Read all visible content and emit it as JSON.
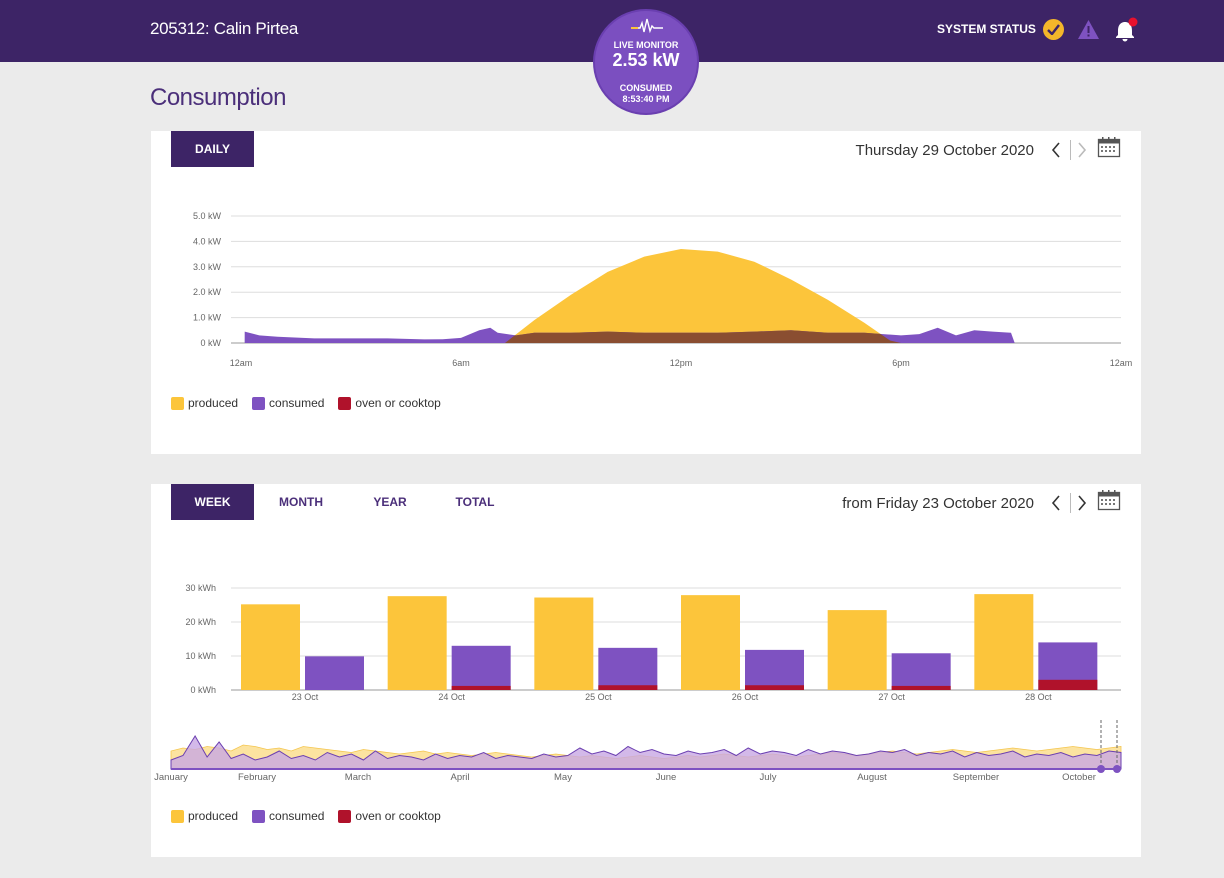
{
  "header": {
    "account": "205312: Calin Pirtea",
    "system_status_label": "SYSTEM STATUS"
  },
  "live_monitor": {
    "label": "LIVE MONITOR",
    "value": "2.53 kW",
    "consumed_label": "CONSUMED",
    "consumed_time": "8:53:40 PM"
  },
  "page": {
    "title": "Consumption"
  },
  "colors": {
    "produced": "#fcc53b",
    "consumed": "#7e52c1",
    "oven": "#b0122b",
    "overlap": "#8a4e31",
    "brand": "#3d2466"
  },
  "daily": {
    "tab": "DAILY",
    "date": "Thursday 29 October 2020",
    "legend": [
      "produced",
      "consumed",
      "oven or cooktop"
    ],
    "chart_data": {
      "type": "area",
      "y_ticks": [
        "5.0 kW",
        "4.0 kW",
        "3.0 kW",
        "2.0 kW",
        "1.0 kW",
        "0 kW"
      ],
      "x_ticks": [
        "12am",
        "6am",
        "12pm",
        "6pm",
        "12am"
      ],
      "ylim": [
        0,
        5
      ],
      "x_unit": "hour",
      "series": [
        {
          "name": "produced",
          "x": [
            0,
            7.2,
            8,
            9,
            10,
            11,
            12,
            13,
            14,
            15,
            16,
            17,
            17.7,
            18,
            24
          ],
          "values": [
            0,
            0,
            0.9,
            1.9,
            2.8,
            3.4,
            3.7,
            3.6,
            3.2,
            2.5,
            1.7,
            0.8,
            0.1,
            0,
            0
          ]
        },
        {
          "name": "consumed",
          "x": [
            0.1,
            0.5,
            1,
            2,
            3,
            4,
            5,
            5.5,
            6,
            6.5,
            6.8,
            7,
            7.5,
            8,
            9,
            10,
            11,
            12,
            13,
            14,
            15,
            16,
            17,
            18,
            18.5,
            19,
            19.5,
            20,
            20.5,
            21,
            21.1
          ],
          "values": [
            0.45,
            0.3,
            0.25,
            0.18,
            0.18,
            0.18,
            0.14,
            0.15,
            0.2,
            0.5,
            0.6,
            0.4,
            0.3,
            0.4,
            0.4,
            0.45,
            0.4,
            0.4,
            0.4,
            0.45,
            0.5,
            0.4,
            0.4,
            0.3,
            0.35,
            0.6,
            0.3,
            0.5,
            0.45,
            0.4,
            0
          ]
        },
        {
          "name": "oven or cooktop",
          "x": [
            0,
            24
          ],
          "values": [
            0,
            0
          ]
        }
      ]
    }
  },
  "weekly": {
    "tabs": [
      "WEEK",
      "MONTH",
      "YEAR",
      "TOTAL"
    ],
    "date": "from Friday 23 October 2020",
    "legend": [
      "produced",
      "consumed",
      "oven or cooktop"
    ],
    "chart_data": {
      "type": "bar",
      "categories": [
        "23 Oct",
        "24 Oct",
        "25 Oct",
        "26 Oct",
        "27 Oct",
        "28 Oct"
      ],
      "y_ticks": [
        "30 kWh",
        "20 kWh",
        "10 kWh",
        "0 kWh"
      ],
      "ylim": [
        0,
        30
      ],
      "series": [
        {
          "name": "produced",
          "values": [
            25.2,
            27.6,
            27.2,
            27.9,
            23.5,
            28.2
          ]
        },
        {
          "name": "consumed",
          "values": [
            9.9,
            13.0,
            12.4,
            11.8,
            10.8,
            14.0
          ]
        },
        {
          "name": "oven or cooktop",
          "values": [
            0,
            1.2,
            1.4,
            1.4,
            1.2,
            3.0
          ]
        }
      ]
    },
    "navigator": {
      "months": [
        "January",
        "February",
        "March",
        "April",
        "May",
        "June",
        "July",
        "August",
        "September",
        "October"
      ],
      "produced": [
        12,
        14,
        13,
        15,
        14,
        12,
        16,
        15,
        13,
        14,
        12,
        15,
        14,
        13,
        12,
        11,
        13,
        12,
        11,
        10,
        11,
        12,
        10,
        11,
        10,
        9,
        10,
        11,
        10,
        9,
        8,
        9,
        10,
        9,
        8,
        9,
        8,
        7,
        8,
        9,
        8,
        7,
        8,
        9,
        8,
        9,
        10,
        9,
        8,
        9,
        10,
        9,
        8,
        9,
        10,
        11,
        10,
        9,
        10,
        11,
        12,
        11,
        10,
        11,
        12,
        13,
        12,
        11,
        12,
        13,
        14,
        13,
        12,
        13,
        14,
        15,
        14,
        13,
        14,
        15
      ],
      "consumed": [
        6,
        9,
        22,
        8,
        18,
        7,
        10,
        6,
        8,
        12,
        7,
        9,
        6,
        11,
        8,
        10,
        6,
        12,
        7,
        9,
        8,
        6,
        10,
        7,
        9,
        8,
        11,
        7,
        9,
        8,
        7,
        10,
        8,
        9,
        14,
        10,
        12,
        9,
        15,
        11,
        13,
        10,
        9,
        12,
        10,
        11,
        13,
        9,
        14,
        10,
        12,
        11,
        9,
        13,
        10,
        12,
        11,
        9,
        10,
        12,
        11,
        13,
        9,
        11,
        10,
        12,
        8,
        11,
        9,
        10,
        12,
        8,
        10,
        9,
        11,
        8,
        10,
        9,
        12,
        11
      ]
    }
  }
}
